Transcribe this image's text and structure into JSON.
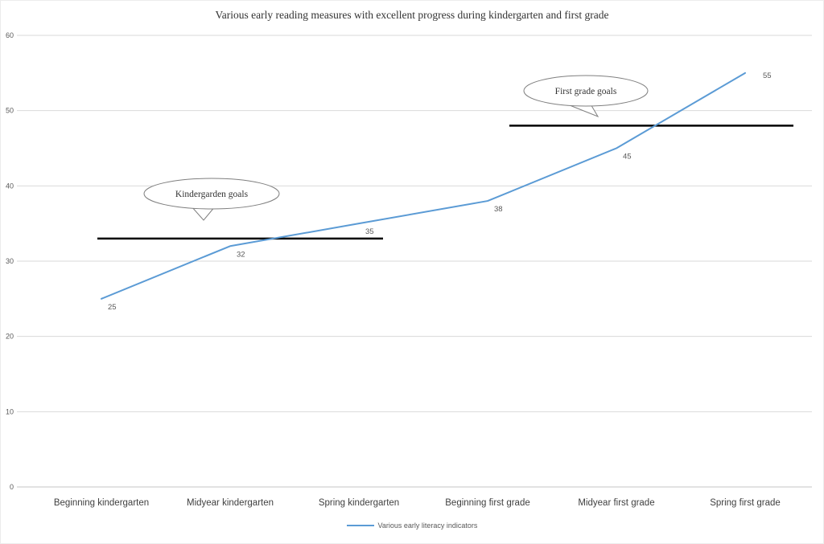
{
  "chart_data": {
    "type": "line",
    "title": "Various early reading measures with excellent progress during kindergarten and first grade",
    "categories": [
      "Beginning kindergarten",
      "Midyear kindergarten",
      "Spring kindergarten",
      "Beginning first grade",
      "Midyear first grade",
      "Spring first grade"
    ],
    "series": [
      {
        "name": "Various early literacy indicators",
        "values": [
          25,
          32,
          35,
          38,
          45,
          55
        ],
        "color": "#5b9bd5"
      }
    ],
    "data_labels": [
      25,
      32,
      35,
      38,
      45,
      55
    ],
    "y_ticks": [
      0,
      10,
      20,
      30,
      40,
      50,
      60
    ],
    "ylim": [
      0,
      60
    ],
    "grid": true,
    "legend_position": "bottom",
    "goal_lines": [
      {
        "label": "Kindergarden goals",
        "value": 33,
        "from_category": "Beginning kindergarten",
        "to_category": "Spring kindergarten",
        "color": "#000000"
      },
      {
        "label": "First grade goals",
        "value": 48,
        "from_category": "Beginning first grade",
        "to_category": "Spring first grade",
        "color": "#000000"
      }
    ]
  },
  "colors": {
    "line": "#5b9bd5",
    "grid": "#d9d9d9",
    "axis_line": "#c6c6c6",
    "axis_text": "#595959",
    "category_text": "#3f3f3f",
    "goal_line": "#000000",
    "callout_stroke": "#7f7f7f"
  }
}
